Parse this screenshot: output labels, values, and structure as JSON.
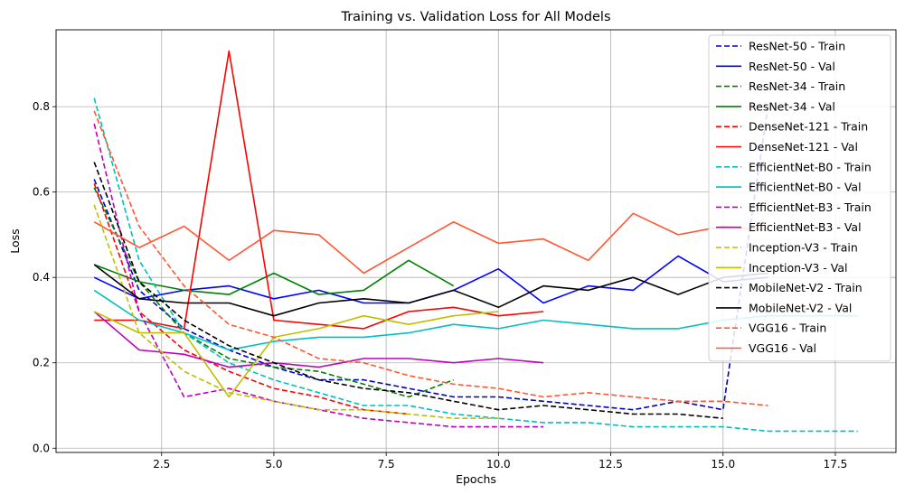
{
  "chart_data": {
    "type": "line",
    "title": "Training vs. Validation Loss for All Models",
    "xlabel": "Epochs",
    "ylabel": "Loss",
    "xlim": [
      0.15,
      18.85
    ],
    "ylim": [
      -0.01,
      0.98
    ],
    "xticks": [
      "2.5",
      "5.0",
      "7.5",
      "10.0",
      "12.5",
      "15.0",
      "17.5"
    ],
    "yticks": [
      "0.0",
      "0.2",
      "0.4",
      "0.6",
      "0.8"
    ],
    "grid": true,
    "legend_position": "top-right",
    "series": [
      {
        "name": "ResNet-50 - Train",
        "color": "#0000cc",
        "dash": true,
        "x": [
          1,
          2,
          3,
          4,
          5,
          6,
          7,
          8,
          9,
          10,
          11,
          12,
          13,
          14,
          15,
          16
        ],
        "y": [
          0.63,
          0.37,
          0.28,
          0.23,
          0.19,
          0.16,
          0.16,
          0.14,
          0.12,
          0.12,
          0.11,
          0.1,
          0.09,
          0.11,
          0.09,
          0.8
        ]
      },
      {
        "name": "ResNet-50 - Val",
        "color": "#0000ff",
        "dash": false,
        "x": [
          1,
          2,
          3,
          4,
          5,
          6,
          7,
          8,
          9,
          10,
          11,
          12,
          13,
          14,
          15,
          16
        ],
        "y": [
          0.4,
          0.35,
          0.37,
          0.38,
          0.35,
          0.37,
          0.34,
          0.34,
          0.37,
          0.42,
          0.34,
          0.38,
          0.37,
          0.45,
          0.39,
          0.4
        ]
      },
      {
        "name": "ResNet-34 - Train",
        "color": "#008000",
        "dash": true,
        "x": [
          1,
          2,
          3,
          4,
          5,
          6,
          7,
          8,
          9
        ],
        "y": [
          0.61,
          0.39,
          0.27,
          0.21,
          0.19,
          0.18,
          0.15,
          0.12,
          0.16
        ]
      },
      {
        "name": "ResNet-34 - Val",
        "color": "#008000",
        "dash": false,
        "x": [
          1,
          2,
          3,
          4,
          5,
          6,
          7,
          8,
          9
        ],
        "y": [
          0.43,
          0.39,
          0.37,
          0.36,
          0.41,
          0.36,
          0.37,
          0.44,
          0.38
        ]
      },
      {
        "name": "DenseNet-121 - Train",
        "color": "#ff0000",
        "dash": true,
        "x": [
          1,
          2,
          3,
          4,
          5,
          6,
          7,
          8
        ],
        "y": [
          0.62,
          0.32,
          0.23,
          0.18,
          0.14,
          0.12,
          0.09,
          0.08
        ]
      },
      {
        "name": "DenseNet-121 - Val",
        "color": "#ff0000",
        "dash": false,
        "x": [
          1,
          2,
          3,
          4,
          5,
          6,
          7,
          8,
          9,
          10,
          11
        ],
        "y": [
          0.3,
          0.3,
          0.28,
          0.93,
          0.3,
          0.29,
          0.28,
          0.32,
          0.33,
          0.31,
          0.32
        ]
      },
      {
        "name": "EfficientNet-B0 - Train",
        "color": "#00bfbf",
        "dash": true,
        "x": [
          1,
          2,
          3,
          4,
          5,
          6,
          7,
          8,
          9,
          10,
          11,
          12,
          13,
          14,
          15,
          16,
          17,
          18
        ],
        "y": [
          0.82,
          0.44,
          0.27,
          0.2,
          0.16,
          0.13,
          0.1,
          0.1,
          0.08,
          0.07,
          0.06,
          0.06,
          0.05,
          0.05,
          0.05,
          0.04,
          0.04,
          0.04
        ]
      },
      {
        "name": "EfficientNet-B0 - Val",
        "color": "#00bfbf",
        "dash": false,
        "x": [
          1,
          2,
          3,
          4,
          5,
          6,
          7,
          8,
          9,
          10,
          11,
          12,
          13,
          14,
          15,
          16,
          17,
          18
        ],
        "y": [
          0.37,
          0.3,
          0.27,
          0.23,
          0.25,
          0.26,
          0.26,
          0.27,
          0.29,
          0.28,
          0.3,
          0.29,
          0.28,
          0.28,
          0.3,
          0.31,
          0.31,
          0.31
        ]
      },
      {
        "name": "EfficientNet-B3 - Train",
        "color": "#bf00bf",
        "dash": true,
        "x": [
          1,
          2,
          3,
          4,
          5,
          6,
          7,
          8,
          9,
          10,
          11
        ],
        "y": [
          0.76,
          0.32,
          0.12,
          0.14,
          0.11,
          0.09,
          0.07,
          0.06,
          0.05,
          0.05,
          0.05
        ]
      },
      {
        "name": "EfficientNet-B3 - Val",
        "color": "#bf00bf",
        "dash": false,
        "x": [
          1,
          2,
          3,
          4,
          5,
          6,
          7,
          8,
          9,
          10,
          11
        ],
        "y": [
          0.32,
          0.23,
          0.22,
          0.19,
          0.2,
          0.19,
          0.21,
          0.21,
          0.2,
          0.21,
          0.2
        ]
      },
      {
        "name": "Inception-V3 - Train",
        "color": "#bfbf00",
        "dash": true,
        "x": [
          1,
          2,
          3,
          4,
          5,
          6,
          7,
          8,
          9,
          10
        ],
        "y": [
          0.57,
          0.27,
          0.18,
          0.13,
          0.11,
          0.09,
          0.09,
          0.08,
          0.07,
          0.07
        ]
      },
      {
        "name": "Inception-V3 - Val",
        "color": "#bfbf00",
        "dash": false,
        "x": [
          1,
          2,
          3,
          4,
          5,
          6,
          7,
          8,
          9,
          10
        ],
        "y": [
          0.32,
          0.27,
          0.27,
          0.12,
          0.26,
          0.28,
          0.31,
          0.29,
          0.31,
          0.32
        ]
      },
      {
        "name": "MobileNet-V2 - Train",
        "color": "#000000",
        "dash": true,
        "x": [
          1,
          2,
          3,
          4,
          5,
          6,
          7,
          8,
          9,
          10,
          11,
          12,
          13,
          14,
          15
        ],
        "y": [
          0.67,
          0.39,
          0.3,
          0.24,
          0.2,
          0.16,
          0.14,
          0.13,
          0.11,
          0.09,
          0.1,
          0.09,
          0.08,
          0.08,
          0.07
        ]
      },
      {
        "name": "MobileNet-V2 - Val",
        "color": "#000000",
        "dash": false,
        "x": [
          1,
          2,
          3,
          4,
          5,
          6,
          7,
          8,
          9,
          10,
          11,
          12,
          13,
          14,
          15,
          16
        ],
        "y": [
          0.43,
          0.35,
          0.34,
          0.34,
          0.31,
          0.34,
          0.35,
          0.34,
          0.37,
          0.33,
          0.38,
          0.37,
          0.4,
          0.36,
          0.4,
          0.41
        ]
      },
      {
        "name": "VGG16 - Train",
        "color": "#ff5733",
        "dash": true,
        "x": [
          1,
          2,
          3,
          4,
          5,
          6,
          7,
          8,
          9,
          10,
          11,
          12,
          13,
          14,
          15,
          16
        ],
        "y": [
          0.79,
          0.52,
          0.38,
          0.29,
          0.26,
          0.21,
          0.2,
          0.17,
          0.15,
          0.14,
          0.12,
          0.13,
          0.12,
          0.11,
          0.11,
          0.1
        ]
      },
      {
        "name": "VGG16 - Val",
        "color": "#ff5733",
        "dash": false,
        "x": [
          1,
          2,
          3,
          4,
          5,
          6,
          7,
          8,
          9,
          10,
          11,
          12,
          13,
          14,
          15,
          16
        ],
        "y": [
          0.53,
          0.47,
          0.52,
          0.44,
          0.51,
          0.5,
          0.41,
          0.47,
          0.53,
          0.48,
          0.49,
          0.44,
          0.55,
          0.5,
          0.52,
          0.51
        ]
      }
    ]
  }
}
